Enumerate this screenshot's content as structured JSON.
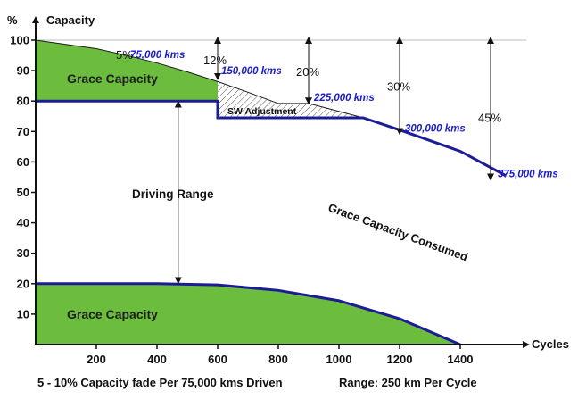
{
  "chart_data": {
    "type": "area",
    "xlabel": "Cycles",
    "ylabel": "Capacity",
    "y_unit": "%",
    "xlim": [
      0,
      1600
    ],
    "ylim": [
      0,
      100
    ],
    "x_ticks": [
      "200",
      "400",
      "600",
      "800",
      "1000",
      "1200",
      "1400"
    ],
    "y_ticks": [
      "10",
      "20",
      "30",
      "40",
      "50",
      "60",
      "70",
      "80",
      "90",
      "100"
    ],
    "series": [
      {
        "name": "",
        "x": [
          0,
          200,
          300,
          400,
          500,
          600,
          700,
          800,
          900,
          1000,
          1080,
          1200,
          1300,
          1400,
          1500,
          1550
        ],
        "values": [
          100,
          97.2,
          95,
          92.5,
          89.6,
          86.4,
          82.9,
          79.2,
          79.2,
          76.6,
          74.5,
          70.5,
          67.3,
          63.5,
          58.6,
          55.5
        ]
      },
      {
        "name": "",
        "x": [
          0,
          600,
          600,
          1080,
          1200,
          1400,
          1550
        ],
        "values": [
          80,
          80,
          74.5,
          74.5,
          70.5,
          63.5,
          55.5
        ]
      },
      {
        "name": "",
        "x": [
          0,
          400,
          600,
          800,
          1000,
          1200,
          1400
        ],
        "values": [
          20,
          20,
          19.6,
          17.8,
          14.4,
          8.5,
          0
        ]
      }
    ],
    "distance_markers": [
      {
        "label": "75,000 kms",
        "pct": "5%",
        "x": 300,
        "y": 95
      },
      {
        "label": "150,000 kms",
        "pct": "12%",
        "x": 600,
        "y": 88
      },
      {
        "label": "225,000 kms",
        "pct": "20%",
        "x": 900,
        "y": 80
      },
      {
        "label": "300,000 kms",
        "pct": "30%",
        "x": 1200,
        "y": 70
      },
      {
        "label": "375,000 kms",
        "pct": "45%",
        "x": 1500,
        "y": 55
      }
    ],
    "annotations": {
      "grace_top": "Grace Capacity",
      "grace_bottom": "Grace Capacity",
      "sw_adjustment": "SW Adjustment",
      "driving_range": "Driving Range",
      "consumed": "Grace Capacity Consumed"
    },
    "footer_left": "5 - 10% Capacity fade Per 75,000 kms Driven",
    "footer_right": "Range: 250 km Per Cycle",
    "colors": {
      "grace_fill": "#6cbd3e",
      "line": "#1c1c96",
      "marker_text": "#1a1ad0",
      "hatch": "#555555"
    }
  }
}
